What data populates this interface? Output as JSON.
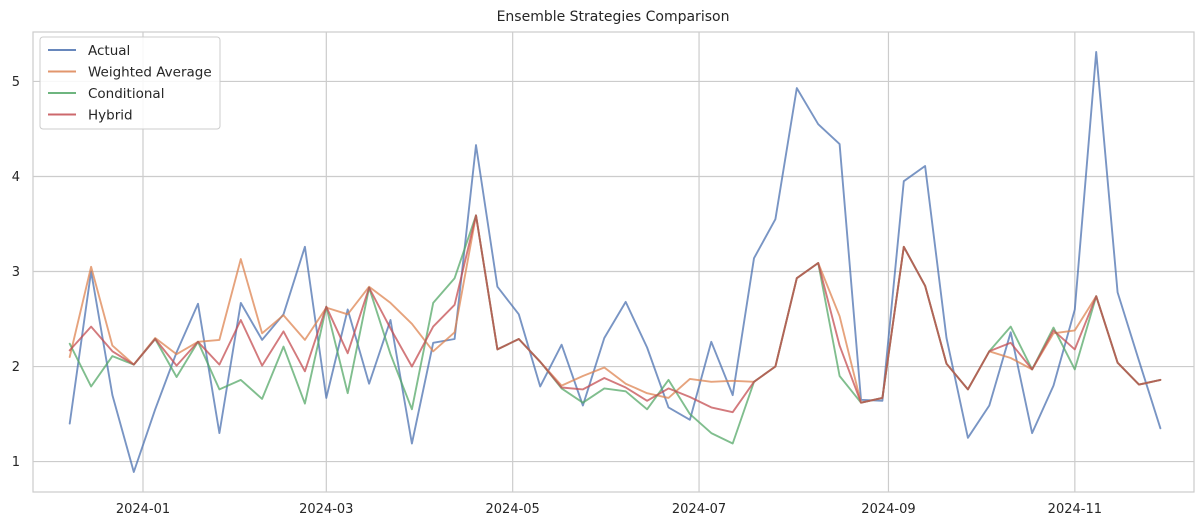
{
  "chart_data": {
    "type": "line",
    "title": "Ensemble Strategies Comparison",
    "xlabel": "",
    "ylabel": "",
    "x_type": "date",
    "x_range": [
      "2023-11-26",
      "2024-12-10"
    ],
    "ylim": [
      0.68,
      5.52
    ],
    "x_ticks": [
      {
        "date": "2024-01-01",
        "label": "2024-01"
      },
      {
        "date": "2024-03-01",
        "label": "2024-03"
      },
      {
        "date": "2024-05-01",
        "label": "2024-05"
      },
      {
        "date": "2024-07-01",
        "label": "2024-07"
      },
      {
        "date": "2024-09-01",
        "label": "2024-09"
      },
      {
        "date": "2024-11-01",
        "label": "2024-11"
      }
    ],
    "y_ticks": [
      {
        "value": 1,
        "label": "1"
      },
      {
        "value": 2,
        "label": "2"
      },
      {
        "value": 3,
        "label": "3"
      },
      {
        "value": 4,
        "label": "4"
      },
      {
        "value": 5,
        "label": "5"
      }
    ],
    "grid": true,
    "legend_position": "top-left",
    "x": [
      "2023-12-08",
      "2023-12-15",
      "2023-12-22",
      "2023-12-29",
      "2024-01-05",
      "2024-01-12",
      "2024-01-19",
      "2024-01-26",
      "2024-02-02",
      "2024-02-09",
      "2024-02-16",
      "2024-02-23",
      "2024-03-01",
      "2024-03-08",
      "2024-03-15",
      "2024-03-22",
      "2024-03-29",
      "2024-04-05",
      "2024-04-12",
      "2024-04-19",
      "2024-04-26",
      "2024-05-03",
      "2024-05-10",
      "2024-05-17",
      "2024-05-24",
      "2024-05-31",
      "2024-06-07",
      "2024-06-14",
      "2024-06-21",
      "2024-06-28",
      "2024-07-05",
      "2024-07-12",
      "2024-07-19",
      "2024-07-26",
      "2024-08-02",
      "2024-08-09",
      "2024-08-16",
      "2024-08-23",
      "2024-08-30",
      "2024-09-06",
      "2024-09-13",
      "2024-09-20",
      "2024-09-27",
      "2024-10-04",
      "2024-10-11",
      "2024-10-18",
      "2024-10-25",
      "2024-11-01",
      "2024-11-08",
      "2024-11-15",
      "2024-11-22",
      "2024-11-29"
    ],
    "series": [
      {
        "name": "Actual",
        "color": "#4c72b0",
        "values": [
          1.4,
          3.0,
          1.7,
          0.89,
          1.55,
          2.15,
          2.66,
          1.3,
          2.67,
          2.28,
          2.55,
          3.26,
          1.67,
          2.6,
          1.82,
          2.49,
          1.19,
          2.25,
          2.29,
          4.33,
          2.84,
          2.55,
          1.79,
          2.23,
          1.59,
          2.3,
          2.68,
          2.2,
          1.57,
          1.44,
          2.26,
          1.7,
          3.14,
          3.55,
          4.93,
          4.55,
          4.34,
          1.65,
          1.64,
          3.95,
          4.11,
          2.3,
          1.25,
          1.59,
          2.36,
          1.3,
          1.8,
          2.6,
          5.31,
          2.78,
          2.06,
          1.35
        ]
      },
      {
        "name": "Weighted Average",
        "color": "#dd8452",
        "values": [
          2.1,
          3.05,
          2.22,
          2.02,
          2.3,
          2.13,
          2.26,
          2.28,
          3.13,
          2.35,
          2.54,
          2.28,
          2.62,
          2.55,
          2.84,
          2.67,
          2.45,
          2.16,
          2.36,
          3.59,
          2.18,
          2.29,
          2.05,
          1.8,
          1.9,
          1.99,
          1.82,
          1.72,
          1.67,
          1.87,
          1.84,
          1.85,
          1.84,
          2.0,
          2.93,
          3.09,
          2.53,
          1.62,
          1.67,
          3.26,
          2.85,
          2.03,
          1.76,
          2.16,
          2.09,
          1.97,
          2.35,
          2.38,
          2.74,
          2.04,
          1.81,
          1.86
        ]
      },
      {
        "name": "Conditional",
        "color": "#55a868",
        "values": [
          2.24,
          1.79,
          2.11,
          2.02,
          2.29,
          1.89,
          2.26,
          1.76,
          1.86,
          1.66,
          2.21,
          1.61,
          2.63,
          1.72,
          2.83,
          2.13,
          1.55,
          2.67,
          2.93,
          3.59,
          2.18,
          2.29,
          2.05,
          1.77,
          1.62,
          1.77,
          1.74,
          1.55,
          1.86,
          1.5,
          1.3,
          1.19,
          1.84,
          2.0,
          2.93,
          3.09,
          1.9,
          1.62,
          1.67,
          3.26,
          2.85,
          2.03,
          1.76,
          2.16,
          2.42,
          1.97,
          2.41,
          1.97,
          2.74,
          2.04,
          1.81,
          1.86
        ]
      },
      {
        "name": "Hybrid",
        "color": "#c44e52",
        "values": [
          2.17,
          2.42,
          2.16,
          2.02,
          2.29,
          2.01,
          2.26,
          2.02,
          2.49,
          2.01,
          2.37,
          1.95,
          2.63,
          2.14,
          2.83,
          2.4,
          2.0,
          2.42,
          2.65,
          3.59,
          2.18,
          2.29,
          2.05,
          1.78,
          1.76,
          1.88,
          1.78,
          1.64,
          1.77,
          1.68,
          1.57,
          1.52,
          1.84,
          2.0,
          2.93,
          3.09,
          2.22,
          1.62,
          1.67,
          3.26,
          2.85,
          2.03,
          1.76,
          2.16,
          2.25,
          1.97,
          2.38,
          2.18,
          2.74,
          2.04,
          1.81,
          1.86
        ]
      }
    ]
  }
}
